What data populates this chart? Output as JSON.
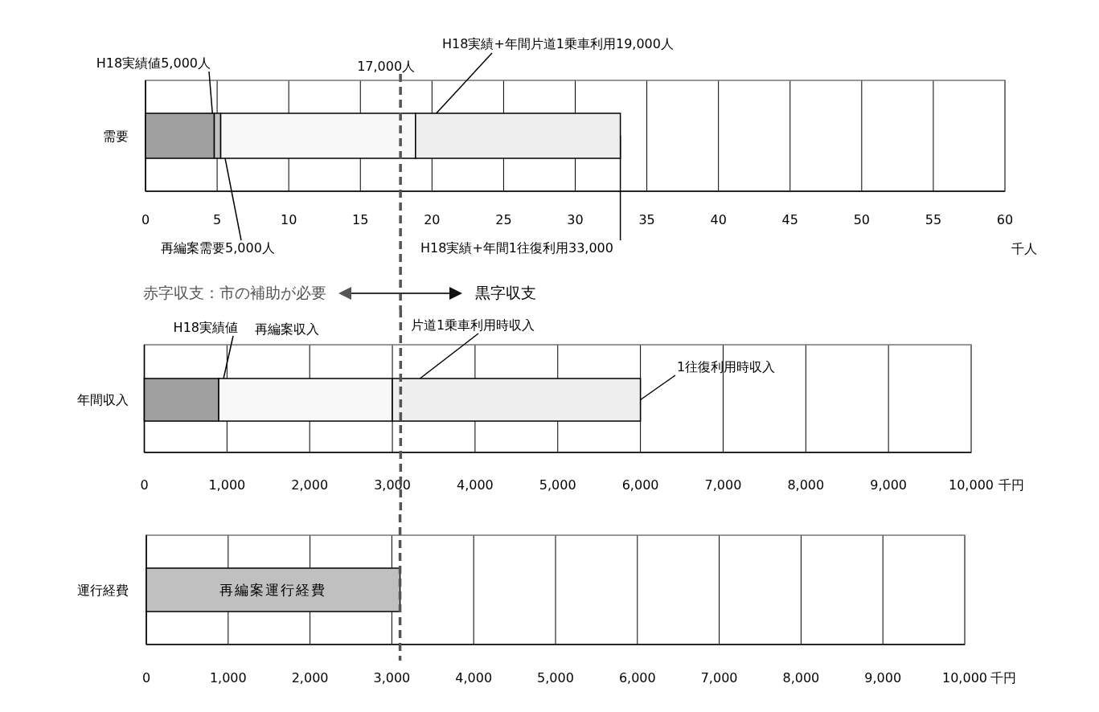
{
  "chart_data": [
    {
      "type": "bar",
      "orientation": "horizontal",
      "stacked": true,
      "categories": [
        "需要"
      ],
      "series": [
        {
          "color": "#a0a0a0",
          "values": [
            4.8
          ]
        },
        {
          "color": "#c0c0c0",
          "values": [
            0.45
          ]
        },
        {
          "color": "#f8f8f8",
          "values": [
            13.6
          ]
        },
        {
          "color": "#eeeeee",
          "values": [
            14.3
          ]
        }
      ],
      "xlim": [
        0,
        60
      ],
      "xticks": [
        0,
        5,
        10,
        15,
        20,
        25,
        30,
        35,
        40,
        45,
        50,
        55,
        60
      ],
      "xlabel": "千人",
      "grid": "x",
      "legend": false,
      "ref_lines": [
        {
          "axis": "x",
          "value": 17.8,
          "label": "17,000人",
          "color": "#555555",
          "line_style": "dashed"
        }
      ],
      "annotations": [
        {
          "text": "H18実績値5,000人",
          "x": 4.8,
          "y": "需要"
        },
        {
          "text": "再編案需要5,000人",
          "x": 5.25,
          "y": "需要"
        },
        {
          "text": "H18実績+年間片道1乗車利用19,000人",
          "x": 18.85,
          "y": "需要"
        },
        {
          "text": "H18実績+年間1往復利用33,000",
          "x": 33.15,
          "y": "需要"
        }
      ]
    },
    {
      "type": "bar",
      "orientation": "horizontal",
      "stacked": true,
      "categories": [
        "年間収入"
      ],
      "series": [
        {
          "color": "#a0a0a0",
          "values": [
            900
          ]
        },
        {
          "color": "#f8f8f8",
          "values": [
            2100
          ]
        },
        {
          "color": "#eeeeee",
          "values": [
            3000
          ]
        }
      ],
      "xlim": [
        0,
        10000
      ],
      "xticks": [
        0,
        {
          "value": 1000,
          "label": "1,000"
        },
        {
          "value": 2000,
          "label": "2,000"
        },
        {
          "value": 3000,
          "label": "3,000"
        },
        {
          "value": 4000,
          "label": "4,000"
        },
        {
          "value": 5000,
          "label": "5,000"
        },
        {
          "value": 6000,
          "label": "6,000"
        },
        {
          "value": 7000,
          "label": "7,000"
        },
        {
          "value": 8000,
          "label": "8,000"
        },
        {
          "value": 9000,
          "label": "9,000"
        },
        {
          "value": 10000,
          "label": "10,000"
        }
      ],
      "xlabel": "千円",
      "grid": "x",
      "legend": false,
      "ref_lines": [
        {
          "axis": "x",
          "value": 3100,
          "color": "#555555",
          "line_style": "dashed"
        }
      ],
      "annotations": [
        "赤字収支：市の補助が必要",
        "黒字収支",
        {
          "text": "H18実績値",
          "x": 900,
          "y": "年間収入"
        },
        "再編案収入",
        {
          "text": "片道1乗車利用時収入",
          "x": 3000,
          "y": "年間収入"
        },
        {
          "text": "1往復利用時収入",
          "x": 6000,
          "y": "年間収入"
        }
      ]
    },
    {
      "type": "bar",
      "orientation": "horizontal",
      "stacked": true,
      "categories": [
        "運行経費"
      ],
      "series": [
        {
          "name": "再編案運行経費",
          "color": "#c0c0c0",
          "values": [
            3100
          ]
        }
      ],
      "xlim": [
        0,
        10000
      ],
      "xticks": [
        0,
        {
          "value": 1000,
          "label": "1,000"
        },
        {
          "value": 2000,
          "label": "2,000"
        },
        {
          "value": 3000,
          "label": "3,000"
        },
        {
          "value": 4000,
          "label": "4,000"
        },
        {
          "value": 5000,
          "label": "5,000"
        },
        {
          "value": 6000,
          "label": "6,000"
        },
        {
          "value": 7000,
          "label": "7,000"
        },
        {
          "value": 8000,
          "label": "8,000"
        },
        {
          "value": 9000,
          "label": "9,000"
        },
        {
          "value": 10000,
          "label": "10,000"
        }
      ],
      "xlabel": "千円",
      "grid": "x",
      "legend": false,
      "ref_lines": [
        {
          "axis": "x",
          "value": 3100,
          "color": "#555555",
          "line_style": "dashed"
        }
      ]
    }
  ]
}
